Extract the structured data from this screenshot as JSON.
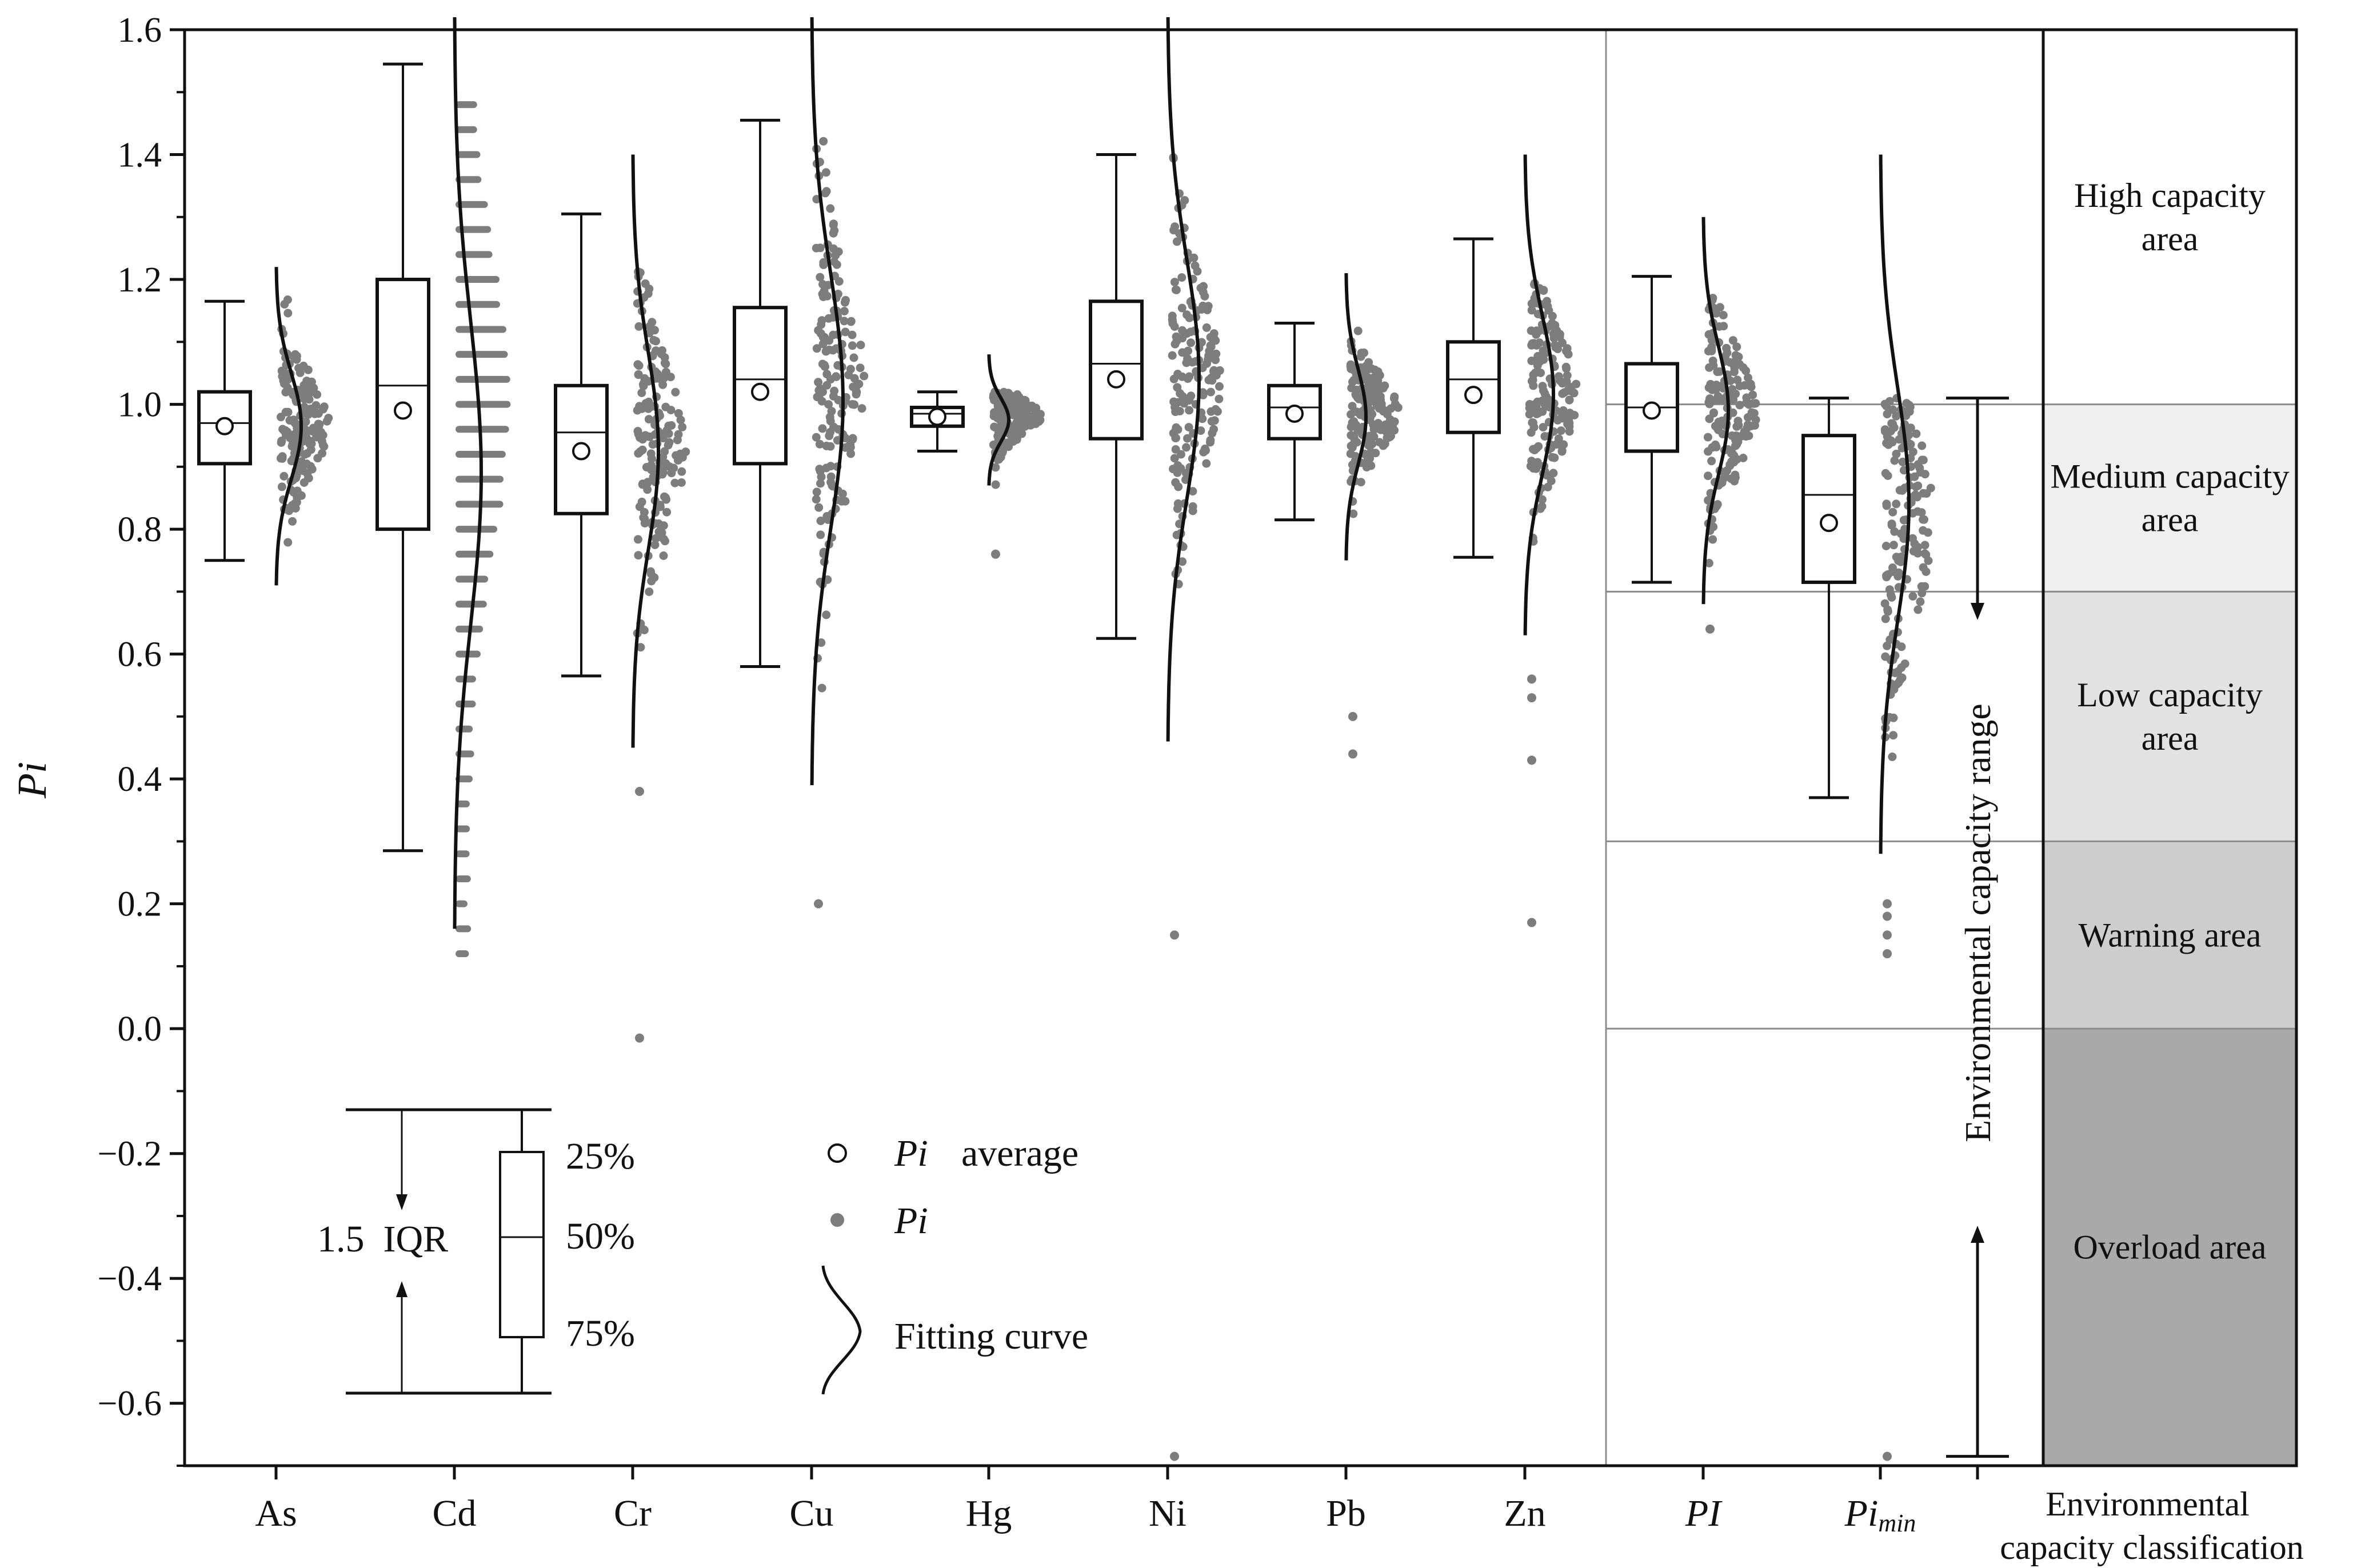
{
  "chart_data": {
    "type": "box",
    "title": "",
    "xlabel": "",
    "ylabel": "Pi",
    "ylim": [
      -0.7,
      1.6
    ],
    "yticks": [
      "1.6",
      "1.4",
      "1.2",
      "1.0",
      "0.8",
      "0.6",
      "0.4",
      "0.2",
      "0.0",
      "−0.2",
      "−0.4",
      "−0.6"
    ],
    "ytick_values": [
      1.6,
      1.4,
      1.2,
      1.0,
      0.8,
      0.6,
      0.4,
      0.2,
      0.0,
      -0.2,
      -0.4,
      -0.6
    ],
    "series": [
      {
        "name": "As",
        "italic": false,
        "whisker_low": 0.75,
        "q1": 0.905,
        "median": 0.97,
        "q3": 1.02,
        "whisker_high": 1.165,
        "mean": 0.965,
        "points_range": [
          0.7,
          1.17
        ],
        "outliers": [],
        "curve_top": 1.22,
        "curve_bottom": 0.71,
        "curve_width": 0.44,
        "discrete": false
      },
      {
        "name": "Cd",
        "italic": false,
        "whisker_low": 0.285,
        "q1": 0.8,
        "median": 1.03,
        "q3": 1.2,
        "whisker_high": 1.545,
        "mean": 0.99,
        "points_range": [
          0.12,
          1.49
        ],
        "outliers": [],
        "curve_top": 1.62,
        "curve_bottom": 0.16,
        "curve_width": 0.47,
        "discrete": true
      },
      {
        "name": "Cr",
        "italic": false,
        "whisker_low": 0.565,
        "q1": 0.825,
        "median": 0.955,
        "q3": 1.03,
        "whisker_high": 1.305,
        "mean": 0.925,
        "points_range": [
          0.6,
          1.22
        ],
        "outliers": [
          0.38,
          -0.015
        ],
        "curve_top": 1.4,
        "curve_bottom": 0.45,
        "curve_width": 0.45,
        "discrete": false
      },
      {
        "name": "Cu",
        "italic": false,
        "whisker_low": 0.58,
        "q1": 0.905,
        "median": 1.04,
        "q3": 1.155,
        "whisker_high": 1.455,
        "mean": 1.02,
        "points_range": [
          0.36,
          1.46
        ],
        "outliers": [
          0.2
        ],
        "curve_top": 1.62,
        "curve_bottom": 0.39,
        "curve_width": 0.55,
        "discrete": false
      },
      {
        "name": "Hg",
        "italic": false,
        "whisker_low": 0.925,
        "q1": 0.965,
        "median": 0.985,
        "q3": 0.995,
        "whisker_high": 1.02,
        "mean": 0.98,
        "points_range": [
          0.85,
          1.02
        ],
        "outliers": [
          0.76
        ],
        "curve_top": 1.08,
        "curve_bottom": 0.87,
        "curve_width": 0.35,
        "discrete": false
      },
      {
        "name": "Ni",
        "italic": false,
        "whisker_low": 0.625,
        "q1": 0.945,
        "median": 1.065,
        "q3": 1.165,
        "whisker_high": 1.4,
        "mean": 1.04,
        "points_range": [
          0.63,
          1.41
        ],
        "outliers": [
          0.15,
          -0.685
        ],
        "curve_top": 1.62,
        "curve_bottom": 0.46,
        "curve_width": 0.55,
        "discrete": false
      },
      {
        "name": "Pb",
        "italic": false,
        "whisker_low": 0.815,
        "q1": 0.945,
        "median": 0.995,
        "q3": 1.03,
        "whisker_high": 1.13,
        "mean": 0.985,
        "points_range": [
          0.8,
          1.12
        ],
        "outliers": [
          0.5,
          0.44
        ],
        "curve_top": 1.21,
        "curve_bottom": 0.75,
        "curve_width": 0.35,
        "discrete": false
      },
      {
        "name": "Zn",
        "italic": false,
        "whisker_low": 0.755,
        "q1": 0.955,
        "median": 1.04,
        "q3": 1.1,
        "whisker_high": 1.265,
        "mean": 1.015,
        "points_range": [
          0.62,
          1.2
        ],
        "outliers": [
          0.56,
          0.53,
          0.43,
          0.17
        ],
        "curve_top": 1.4,
        "curve_bottom": 0.63,
        "curve_width": 0.5,
        "discrete": false
      },
      {
        "name": "PI",
        "italic": true,
        "whisker_low": 0.715,
        "q1": 0.925,
        "median": 0.995,
        "q3": 1.065,
        "whisker_high": 1.205,
        "mean": 0.99,
        "points_range": [
          0.67,
          1.18
        ],
        "outliers": [
          0.64
        ],
        "curve_top": 1.3,
        "curve_bottom": 0.68,
        "curve_width": 0.44,
        "discrete": false
      },
      {
        "name": "Pimin",
        "italic": true,
        "subscript": "min",
        "whisker_low": 0.37,
        "q1": 0.715,
        "median": 0.855,
        "q3": 0.95,
        "whisker_high": 1.01,
        "mean": 0.81,
        "points_range": [
          0.33,
          1.01
        ],
        "outliers": [
          0.2,
          0.18,
          0.15,
          0.12,
          -0.685
        ],
        "curve_top": 1.4,
        "curve_bottom": 0.28,
        "curve_width": 0.5,
        "discrete": false
      }
    ],
    "zones": [
      {
        "label_lines": [
          "High capacity",
          "area"
        ],
        "from": 1.0,
        "to": 1.6,
        "color": "#ffffff"
      },
      {
        "label_lines": [
          "Medium capacity",
          "area"
        ],
        "from": 0.7,
        "to": 1.0,
        "color": "#efefef"
      },
      {
        "label_lines": [
          "Low capacity",
          "area"
        ],
        "from": 0.3,
        "to": 0.7,
        "color": "#e2e2e2"
      },
      {
        "label_lines": [
          "Warning area"
        ],
        "from": 0.0,
        "to": 0.3,
        "color": "#cdcdcd"
      },
      {
        "label_lines": [
          "Overload area"
        ],
        "from": -0.7,
        "to": 0.0,
        "color": "#a9a9a9"
      }
    ],
    "zone_boundaries": [
      1.0,
      0.7,
      0.3,
      0.0
    ],
    "range_label": "Environmental capacity range",
    "range_top": 1.01,
    "range_bottom": -0.685,
    "classification_label_lines": [
      "Environmental",
      "capacity classification"
    ]
  },
  "legend": {
    "percent_25": "25%",
    "percent_50": "50%",
    "percent_75": "75%",
    "iqr_label": "1.5  IQR",
    "average_label_sym": "Pi",
    "average_label_text": "average",
    "points_label": "Pi",
    "curve_label": "Fitting curve"
  },
  "colors": {
    "axis": "#111111",
    "points": "#7d7d7d",
    "box_fill": "#ffffff",
    "zone_line": "#8c8c8c"
  }
}
